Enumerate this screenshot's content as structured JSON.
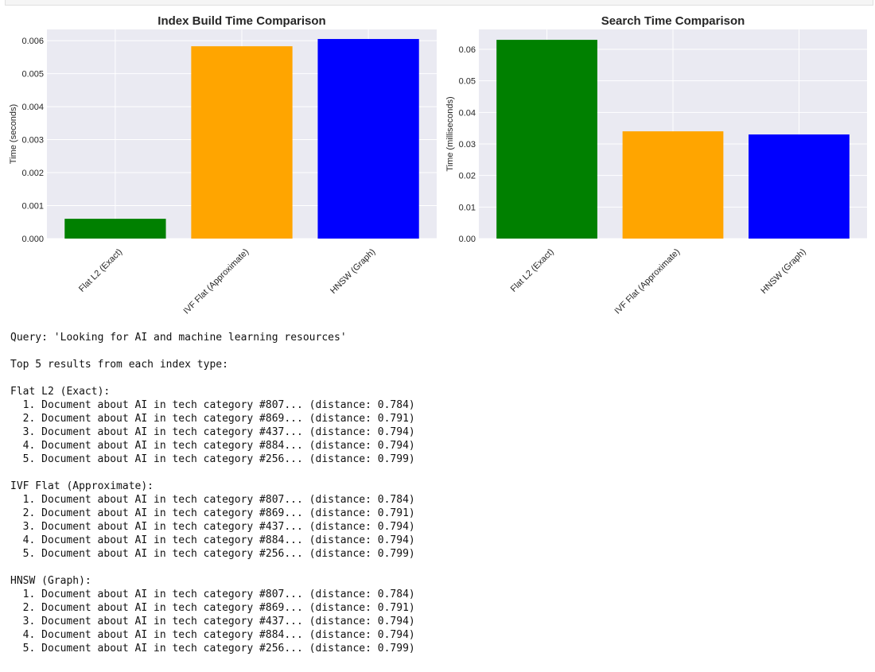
{
  "chart_data": [
    {
      "type": "bar",
      "title": "Index Build Time Comparison",
      "y_label": "Time (seconds)",
      "categories": [
        "Flat L2 (Exact)",
        "IVF Flat (Approximate)",
        "HNSW (Graph)"
      ],
      "values": [
        0.0006,
        0.00583,
        0.00605
      ],
      "colors": [
        "#008000",
        "#ffa500",
        "#0000ff"
      ],
      "ylim": [
        0,
        0.00634
      ],
      "yticks": [
        {
          "value": 0,
          "label": "0.000"
        },
        0.001,
        0.002,
        0.003,
        0.004,
        0.005,
        0.006
      ],
      "grid": true
    },
    {
      "type": "bar",
      "title": "Search Time Comparison",
      "y_label": "Time (milliseconds)",
      "categories": [
        "Flat L2 (Exact)",
        "IVF Flat (Approximate)",
        "HNSW (Graph)"
      ],
      "values": [
        0.063,
        0.034,
        0.033
      ],
      "colors": [
        "#008000",
        "#ffa500",
        "#0000ff"
      ],
      "ylim": [
        0,
        0.0663
      ],
      "yticks": [
        {
          "value": 0,
          "label": "0.00"
        },
        0.01,
        0.02,
        0.03,
        0.04,
        0.05,
        0.06
      ],
      "grid": true
    }
  ],
  "output": {
    "query": "Query: 'Looking for AI and machine learning resources'",
    "header": "Top 5 results from each index type:",
    "groups": [
      {
        "name": "Flat L2 (Exact):",
        "results": [
          "1. Document about AI in tech category #807... (distance: 0.784)",
          "2. Document about AI in tech category #869... (distance: 0.791)",
          "3. Document about AI in tech category #437... (distance: 0.794)",
          "4. Document about AI in tech category #884... (distance: 0.794)",
          "5. Document about AI in tech category #256... (distance: 0.799)"
        ]
      },
      {
        "name": "IVF Flat (Approximate):",
        "results": [
          "1. Document about AI in tech category #807... (distance: 0.784)",
          "2. Document about AI in tech category #869... (distance: 0.791)",
          "3. Document about AI in tech category #437... (distance: 0.794)",
          "4. Document about AI in tech category #884... (distance: 0.794)",
          "5. Document about AI in tech category #256... (distance: 0.799)"
        ]
      },
      {
        "name": "HNSW (Graph):",
        "results": [
          "1. Document about AI in tech category #807... (distance: 0.784)",
          "2. Document about AI in tech category #869... (distance: 0.791)",
          "3. Document about AI in tech category #437... (distance: 0.794)",
          "4. Document about AI in tech category #884... (distance: 0.794)",
          "5. Document about AI in tech category #256... (distance: 0.799)"
        ]
      }
    ]
  }
}
